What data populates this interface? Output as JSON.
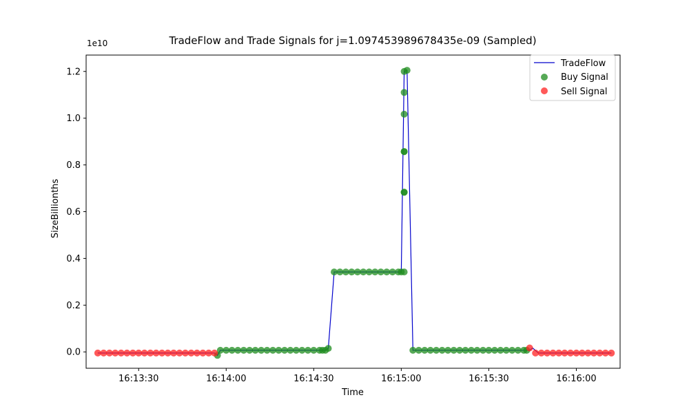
{
  "chart_data": {
    "type": "line",
    "title": "TradeFlow and Trade Signals for j=1.097453989678435e-09 (Sampled)",
    "xlabel": "Time",
    "ylabel": "SizeBillionths",
    "y_offset_label": "1e10",
    "y_unit_multiplier": 10000000000.0,
    "xlim": [
      "16:13:12",
      "16:16:15"
    ],
    "ylim": [
      -0.07,
      1.27
    ],
    "x_ticks": [
      "16:13:30",
      "16:14:00",
      "16:14:30",
      "16:15:00",
      "16:15:30",
      "16:16:00"
    ],
    "y_ticks": [
      "0.0",
      "0.2",
      "0.4",
      "0.6",
      "0.8",
      "1.0",
      "1.2"
    ],
    "legend_position": "upper right",
    "grid": false,
    "colors": {
      "tradeflow": "#0000cc",
      "buy": "#1e8c1e",
      "sell": "#ff2222"
    },
    "legend": {
      "line_label": "TradeFlow",
      "buy_label": "Buy Signal",
      "sell_label": "Sell Signal"
    },
    "series": [
      {
        "name": "TradeFlow",
        "kind": "line",
        "x": [
          "16:13:16",
          "16:13:56",
          "16:13:57",
          "16:13:58",
          "16:14:33",
          "16:14:34",
          "16:14:35",
          "16:14:37",
          "16:15:00",
          "16:15:01",
          "16:15:02",
          "16:15:04",
          "16:15:44",
          "16:15:45",
          "16:15:47",
          "16:16:12"
        ],
        "y": [
          -0.005,
          -0.005,
          -0.015,
          0.007,
          0.007,
          0.007,
          0.015,
          0.342,
          0.342,
          1.2,
          1.205,
          0.007,
          0.007,
          0.017,
          -0.005,
          -0.005
        ]
      },
      {
        "name": "Buy Signal",
        "kind": "scatter",
        "x": [
          "16:13:57",
          "16:13:58",
          "16:14:00",
          "16:14:02",
          "16:14:04",
          "16:14:06",
          "16:14:08",
          "16:14:10",
          "16:14:12",
          "16:14:14",
          "16:14:16",
          "16:14:18",
          "16:14:20",
          "16:14:22",
          "16:14:24",
          "16:14:26",
          "16:14:28",
          "16:14:30",
          "16:14:32",
          "16:14:33",
          "16:14:34",
          "16:14:35",
          "16:14:37",
          "16:14:39",
          "16:14:41",
          "16:14:43",
          "16:14:45",
          "16:14:47",
          "16:14:49",
          "16:14:51",
          "16:14:53",
          "16:14:55",
          "16:14:57",
          "16:14:59",
          "16:15:00",
          "16:15:01",
          "16:15:01",
          "16:15:01",
          "16:15:01",
          "16:15:01",
          "16:15:01",
          "16:15:01",
          "16:15:01",
          "16:15:02",
          "16:15:04",
          "16:15:06",
          "16:15:08",
          "16:15:10",
          "16:15:12",
          "16:15:14",
          "16:15:16",
          "16:15:18",
          "16:15:20",
          "16:15:22",
          "16:15:24",
          "16:15:26",
          "16:15:28",
          "16:15:30",
          "16:15:32",
          "16:15:34",
          "16:15:36",
          "16:15:38",
          "16:15:40",
          "16:15:42",
          "16:15:43"
        ],
        "y": [
          -0.015,
          0.007,
          0.007,
          0.007,
          0.007,
          0.007,
          0.007,
          0.007,
          0.007,
          0.007,
          0.007,
          0.007,
          0.007,
          0.007,
          0.007,
          0.007,
          0.007,
          0.007,
          0.007,
          0.007,
          0.007,
          0.015,
          0.342,
          0.342,
          0.342,
          0.342,
          0.342,
          0.342,
          0.342,
          0.342,
          0.342,
          0.342,
          0.342,
          0.342,
          0.342,
          0.342,
          0.683,
          0.683,
          0.857,
          0.857,
          1.017,
          1.11,
          1.2,
          1.205,
          0.007,
          0.007,
          0.007,
          0.007,
          0.007,
          0.007,
          0.007,
          0.007,
          0.007,
          0.007,
          0.007,
          0.007,
          0.007,
          0.007,
          0.007,
          0.007,
          0.007,
          0.007,
          0.007,
          0.007,
          0.007
        ]
      },
      {
        "name": "Sell Signal",
        "kind": "scatter",
        "x": [
          "16:13:16",
          "16:13:18",
          "16:13:20",
          "16:13:22",
          "16:13:24",
          "16:13:26",
          "16:13:28",
          "16:13:30",
          "16:13:32",
          "16:13:34",
          "16:13:36",
          "16:13:38",
          "16:13:40",
          "16:13:42",
          "16:13:44",
          "16:13:46",
          "16:13:48",
          "16:13:50",
          "16:13:52",
          "16:13:54",
          "16:13:56",
          "16:15:44",
          "16:15:46",
          "16:15:48",
          "16:15:50",
          "16:15:52",
          "16:15:54",
          "16:15:56",
          "16:15:58",
          "16:16:00",
          "16:16:02",
          "16:16:04",
          "16:16:06",
          "16:16:08",
          "16:16:10",
          "16:16:12"
        ],
        "y": [
          -0.005,
          -0.005,
          -0.005,
          -0.005,
          -0.005,
          -0.005,
          -0.005,
          -0.005,
          -0.005,
          -0.005,
          -0.005,
          -0.005,
          -0.005,
          -0.005,
          -0.005,
          -0.005,
          -0.005,
          -0.005,
          -0.005,
          -0.005,
          -0.005,
          0.017,
          -0.005,
          -0.005,
          -0.005,
          -0.005,
          -0.005,
          -0.005,
          -0.005,
          -0.005,
          -0.005,
          -0.005,
          -0.005,
          -0.005,
          -0.005,
          -0.005
        ]
      }
    ]
  }
}
